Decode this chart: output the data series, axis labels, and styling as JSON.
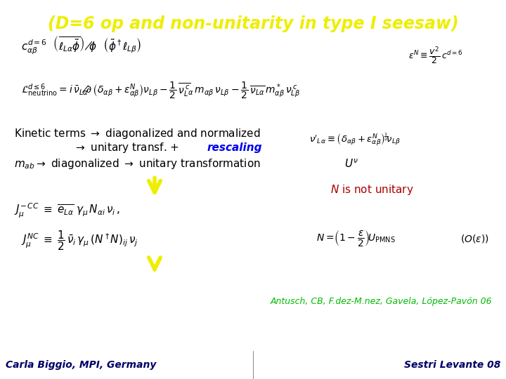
{
  "title": "(D=6 op and non-unitarity in type I seesaw)",
  "title_color": "#EEEE00",
  "title_fontsize": 17,
  "bg_color": "#FFFFFF",
  "footer_bg_color": "#77CCDD",
  "footer_left": "Carla Biggio, MPI, Germany",
  "footer_right": "Sestri Levante 08",
  "footer_color": "#000066",
  "footer_fontsize": 10,
  "ref_color": "#00BB00",
  "ref_text": "Antusch, CB, F.dez-M.nez, Gavela, López-Pavón 06",
  "red_color": "#AA0000",
  "blue_color": "#0000EE",
  "yellow_color": "#EEEE00",
  "black_color": "#000000",
  "eq1_fontsize": 11,
  "eq2_fontsize": 10,
  "text_fontsize": 11,
  "small_fontsize": 10
}
